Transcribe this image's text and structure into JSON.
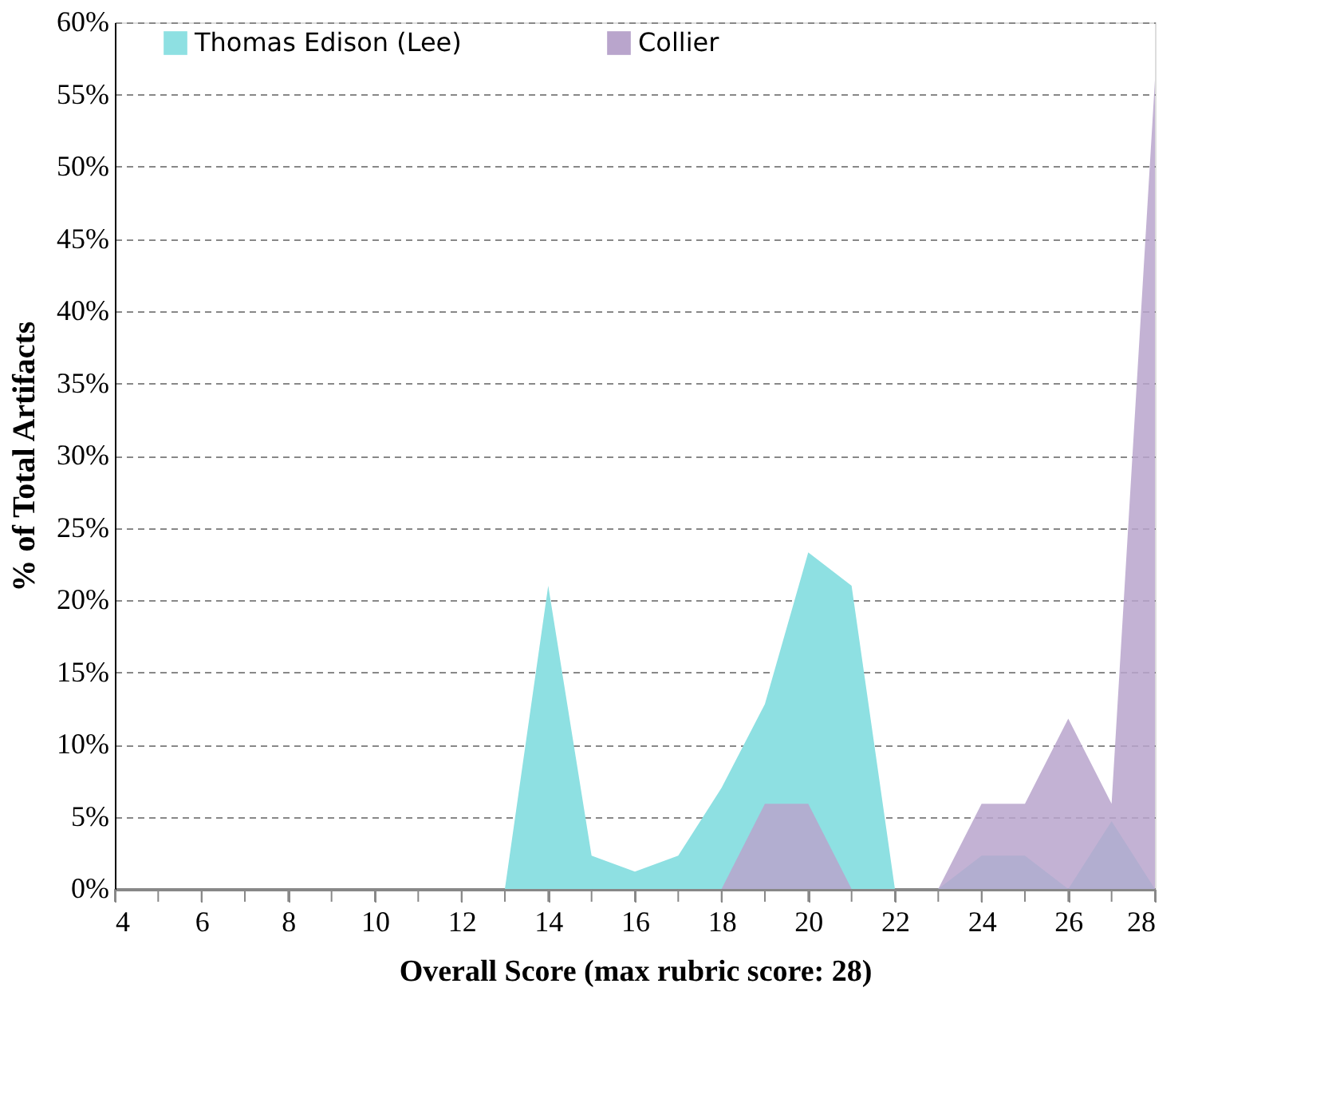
{
  "chart_data": {
    "type": "area",
    "xlabel": "Overall Score (max rubric score: 28)",
    "ylabel": "% of  Total Artifacts",
    "x": [
      4,
      5,
      6,
      7,
      8,
      9,
      10,
      11,
      12,
      13,
      14,
      15,
      16,
      17,
      18,
      19,
      20,
      21,
      22,
      23,
      24,
      25,
      26,
      27,
      28
    ],
    "series": [
      {
        "name": "Thomas Edison (Lee)",
        "color": "#8ee0e2",
        "values": [
          0,
          0,
          0,
          0,
          0,
          0,
          0,
          0,
          0,
          0,
          21,
          2.3,
          1.2,
          2.3,
          7,
          12.8,
          23.3,
          21,
          0,
          0,
          2.3,
          2.3,
          0,
          4.7,
          0
        ]
      },
      {
        "name": "Collier",
        "color": "#b9a5cc",
        "values": [
          0,
          0,
          0,
          0,
          0,
          0,
          0,
          0,
          0,
          0,
          0,
          0,
          0,
          0,
          0,
          5.9,
          5.9,
          0,
          0,
          0,
          5.9,
          5.9,
          11.8,
          5.9,
          56
        ]
      }
    ],
    "xlim": [
      4,
      28
    ],
    "xticks": [
      4,
      {
        "value": 5,
        "label": null
      },
      6,
      {
        "value": 7,
        "label": null
      },
      8,
      {
        "value": 9,
        "label": null
      },
      10,
      {
        "value": 11,
        "label": null
      },
      12,
      {
        "value": 13,
        "label": null
      },
      14,
      {
        "value": 15,
        "label": null
      },
      16,
      {
        "value": 17,
        "label": null
      },
      18,
      {
        "value": 19,
        "label": null
      },
      20,
      {
        "value": 21,
        "label": null
      },
      22,
      {
        "value": 23,
        "label": null
      },
      24,
      {
        "value": 25,
        "label": null
      },
      26,
      {
        "value": 27,
        "label": null
      },
      28
    ],
    "ylim": [
      0,
      60
    ],
    "yticks": [
      {
        "value": 0,
        "label": "0%"
      },
      {
        "value": 5,
        "label": "5%"
      },
      {
        "value": 10,
        "label": "10%"
      },
      {
        "value": 15,
        "label": "15%"
      },
      {
        "value": 20,
        "label": "20%"
      },
      {
        "value": 25,
        "label": "25%"
      },
      {
        "value": 30,
        "label": "30%"
      },
      {
        "value": 35,
        "label": "35%"
      },
      {
        "value": 40,
        "label": "40%"
      },
      {
        "value": 45,
        "label": "45%"
      },
      {
        "value": 50,
        "label": "50%"
      },
      {
        "value": 55,
        "label": "55%"
      },
      {
        "value": 60,
        "label": "60%"
      }
    ],
    "grid": "y",
    "legend": "top"
  }
}
